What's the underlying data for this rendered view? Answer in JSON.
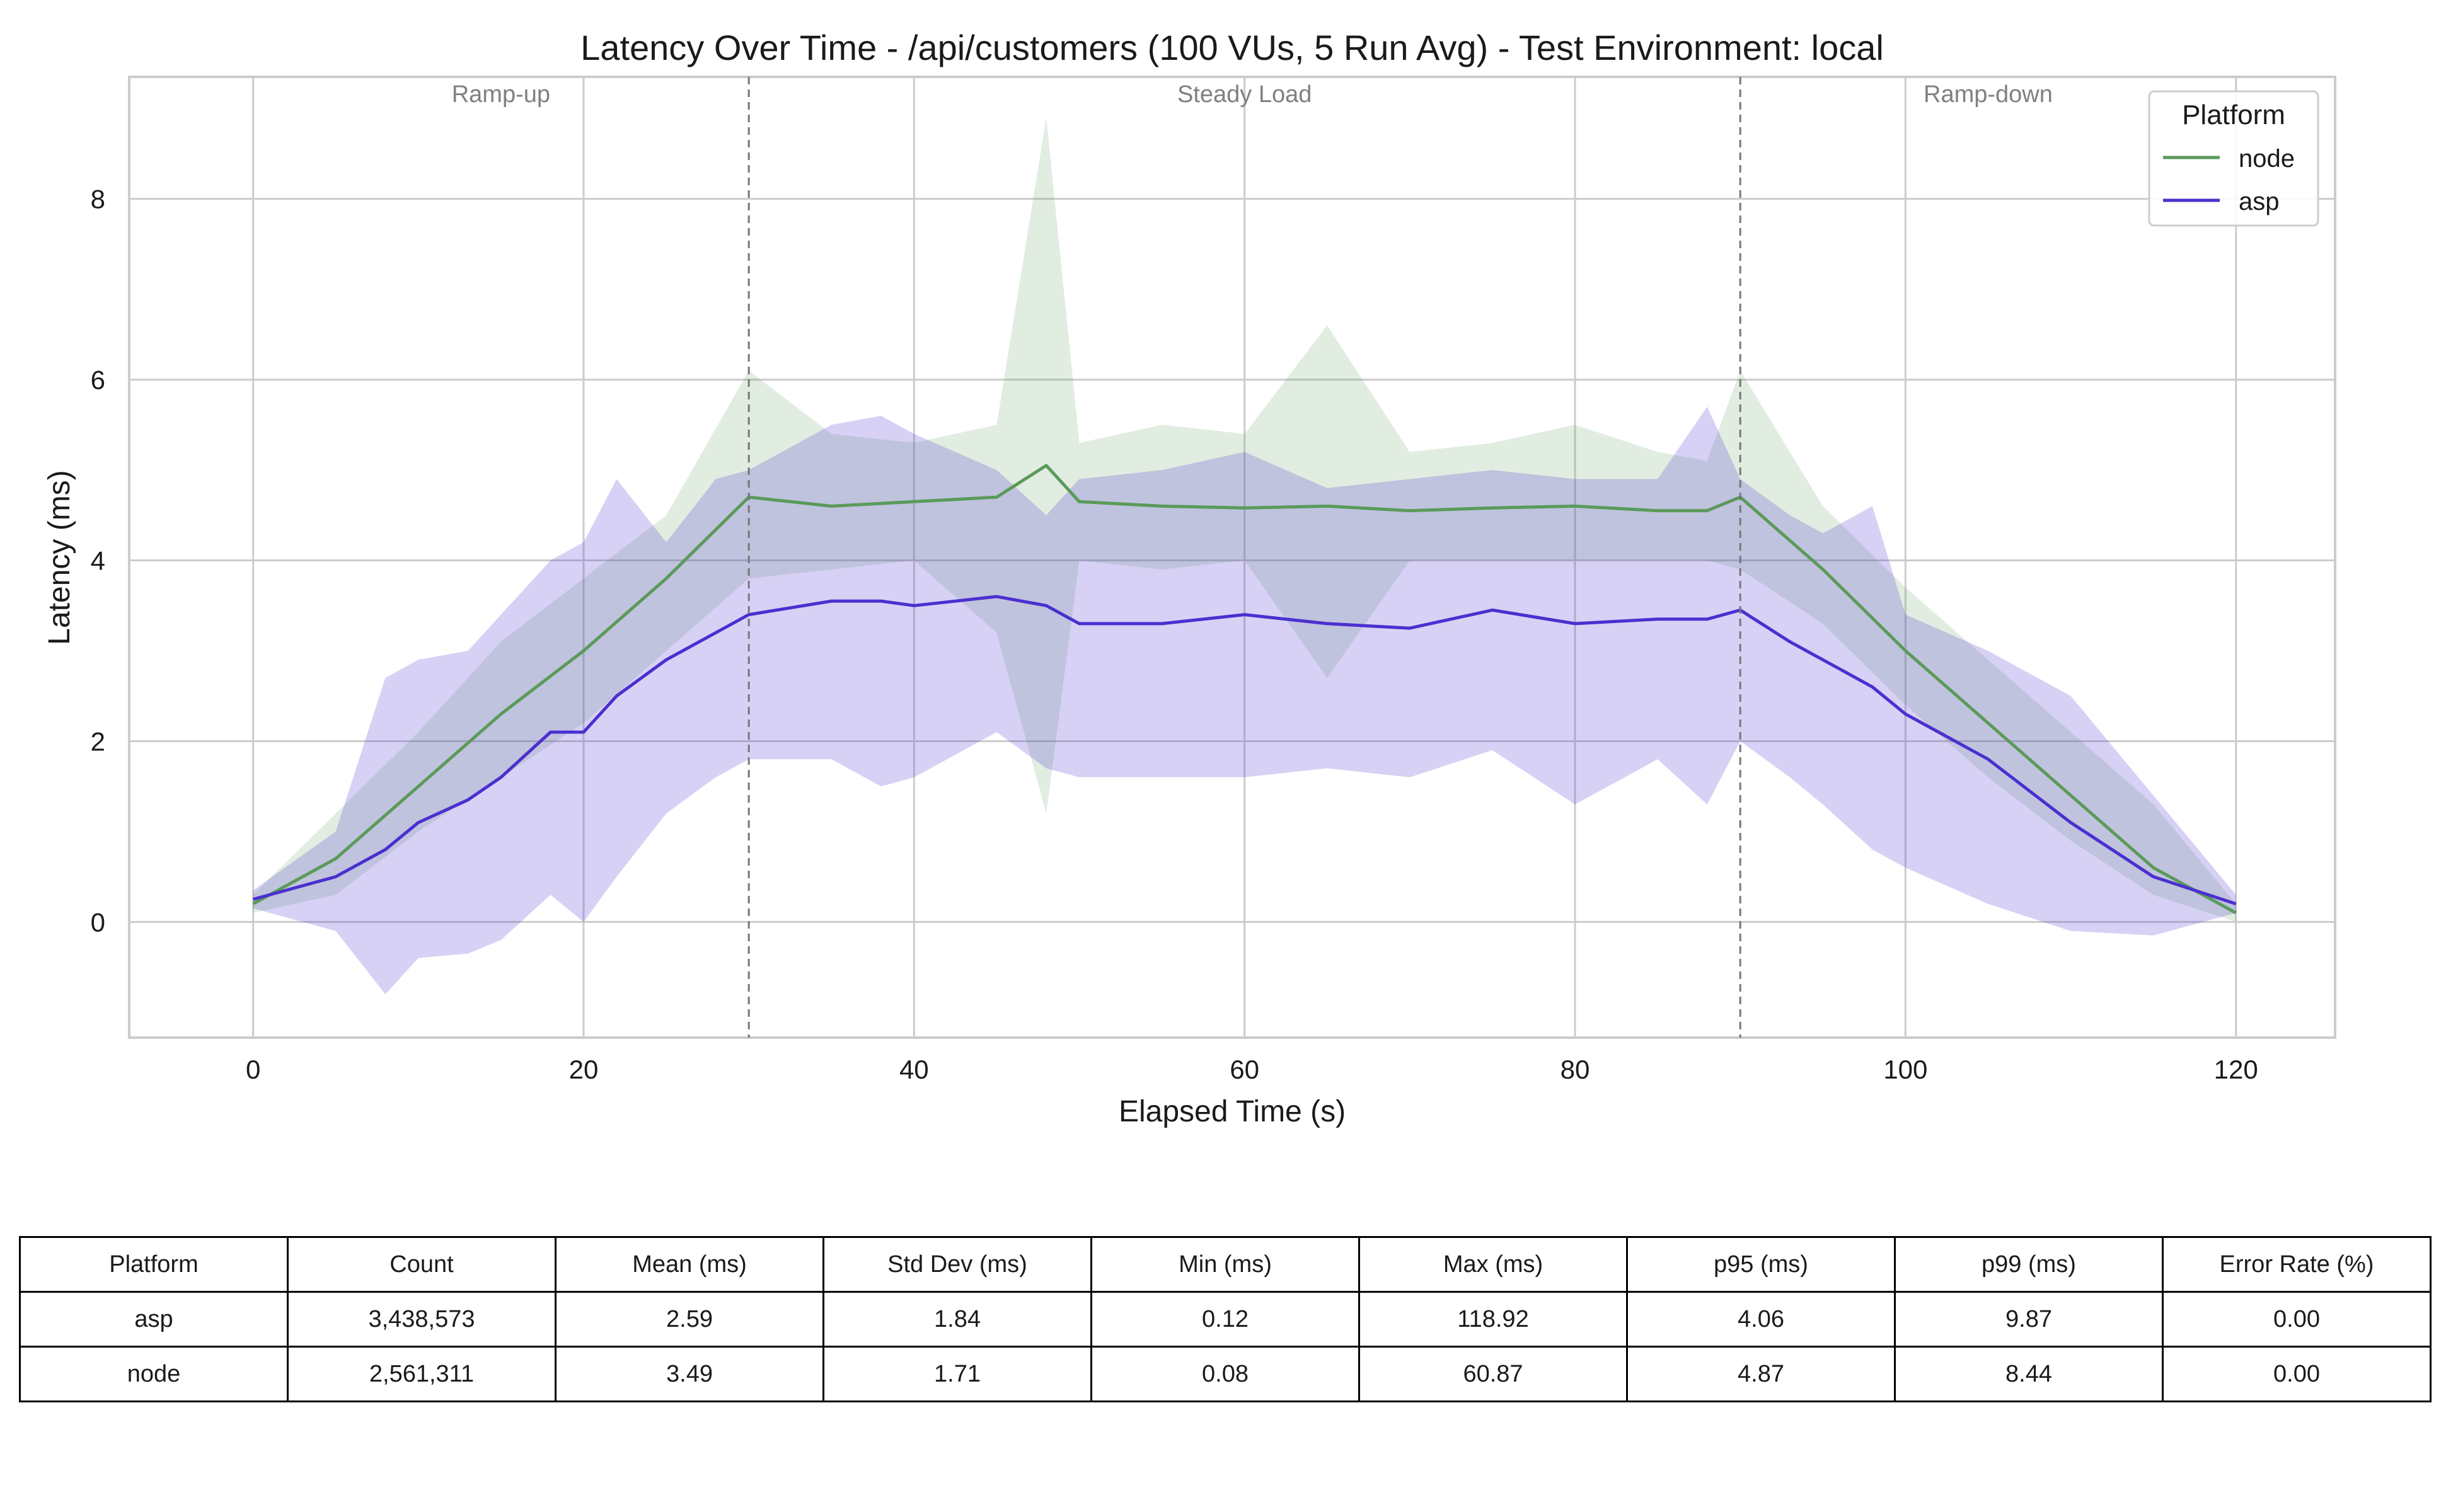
{
  "chart_data": {
    "type": "line",
    "title": "Latency Over Time - /api/customers (100 VUs, 5 Run Avg) - Test Environment: local",
    "xlabel": "Elapsed Time (s)",
    "ylabel": "Latency (ms)",
    "xlim": [
      -7.5,
      126
    ],
    "ylim": [
      -1.28,
      9.35
    ],
    "xticks": [
      0,
      20,
      40,
      60,
      80,
      100,
      120
    ],
    "yticks": [
      0,
      2,
      4,
      6,
      8
    ],
    "grid": true,
    "phase_lines": [
      30,
      90
    ],
    "phase_labels": [
      {
        "text": "Ramp-up",
        "x": 15
      },
      {
        "text": "Steady Load",
        "x": 60
      },
      {
        "text": "Ramp-down",
        "x": 105
      }
    ],
    "legend": {
      "title": "Platform",
      "position": "top-right"
    },
    "series": [
      {
        "name": "node",
        "color": "#5a9a5a",
        "x": [
          0,
          5,
          10,
          15,
          20,
          25,
          30,
          35,
          40,
          45,
          48,
          50,
          55,
          60,
          65,
          70,
          75,
          80,
          85,
          88,
          90,
          95,
          100,
          105,
          110,
          115,
          120
        ],
        "mean": [
          0.2,
          0.7,
          1.5,
          2.3,
          3.0,
          3.8,
          4.7,
          4.6,
          4.65,
          4.7,
          5.05,
          4.65,
          4.6,
          4.58,
          4.6,
          4.55,
          4.58,
          4.6,
          4.55,
          4.55,
          4.7,
          3.9,
          3.0,
          2.2,
          1.4,
          0.6,
          0.1
        ],
        "upper": [
          0.3,
          1.2,
          2.1,
          3.1,
          3.8,
          4.5,
          6.1,
          5.4,
          5.3,
          5.5,
          8.9,
          5.3,
          5.5,
          5.4,
          6.6,
          5.2,
          5.3,
          5.5,
          5.2,
          5.1,
          6.1,
          4.6,
          3.7,
          2.9,
          2.1,
          1.3,
          0.2
        ],
        "lower": [
          0.1,
          0.3,
          1.0,
          1.6,
          2.2,
          3.0,
          3.8,
          3.9,
          4.0,
          3.2,
          1.2,
          4.0,
          3.9,
          4.0,
          2.7,
          4.0,
          4.0,
          4.0,
          4.0,
          4.0,
          3.9,
          3.3,
          2.4,
          1.6,
          0.9,
          0.3,
          0.0
        ]
      },
      {
        "name": "asp",
        "color": "#4b2fd0",
        "x": [
          0,
          5,
          8,
          10,
          13,
          15,
          18,
          20,
          22,
          25,
          28,
          30,
          35,
          38,
          40,
          45,
          48,
          50,
          55,
          60,
          65,
          70,
          75,
          80,
          85,
          88,
          90,
          93,
          95,
          98,
          100,
          105,
          110,
          115,
          120
        ],
        "mean": [
          0.25,
          0.5,
          0.8,
          1.1,
          1.35,
          1.6,
          2.1,
          2.1,
          2.5,
          2.9,
          3.2,
          3.4,
          3.55,
          3.55,
          3.5,
          3.6,
          3.5,
          3.3,
          3.3,
          3.4,
          3.3,
          3.25,
          3.45,
          3.3,
          3.35,
          3.35,
          3.45,
          3.1,
          2.9,
          2.6,
          2.3,
          1.8,
          1.1,
          0.5,
          0.2
        ],
        "upper": [
          0.35,
          1.0,
          2.7,
          2.9,
          3.0,
          3.4,
          4.0,
          4.2,
          4.9,
          4.2,
          4.9,
          5.0,
          5.5,
          5.6,
          5.4,
          5.0,
          4.5,
          4.9,
          5.0,
          5.2,
          4.8,
          4.9,
          5.0,
          4.9,
          4.9,
          5.7,
          4.9,
          4.5,
          4.3,
          4.6,
          3.4,
          3.0,
          2.5,
          1.4,
          0.3
        ],
        "lower": [
          0.15,
          -0.1,
          -0.8,
          -0.4,
          -0.35,
          -0.2,
          0.3,
          0.0,
          0.5,
          1.2,
          1.6,
          1.8,
          1.8,
          1.5,
          1.6,
          2.1,
          1.7,
          1.6,
          1.6,
          1.6,
          1.7,
          1.6,
          1.9,
          1.3,
          1.8,
          1.3,
          2.0,
          1.6,
          1.3,
          0.8,
          0.6,
          0.2,
          -0.1,
          -0.15,
          0.1
        ]
      }
    ]
  },
  "stats_table": {
    "headers": [
      "Platform",
      "Count",
      "Mean (ms)",
      "Std Dev (ms)",
      "Min (ms)",
      "Max (ms)",
      "p95 (ms)",
      "p99 (ms)",
      "Error Rate (%)"
    ],
    "rows": [
      [
        "asp",
        "3,438,573",
        "2.59",
        "1.84",
        "0.12",
        "118.92",
        "4.06",
        "9.87",
        "0.00"
      ],
      [
        "node",
        "2,561,311",
        "3.49",
        "1.71",
        "0.08",
        "60.87",
        "4.87",
        "8.44",
        "0.00"
      ]
    ]
  }
}
